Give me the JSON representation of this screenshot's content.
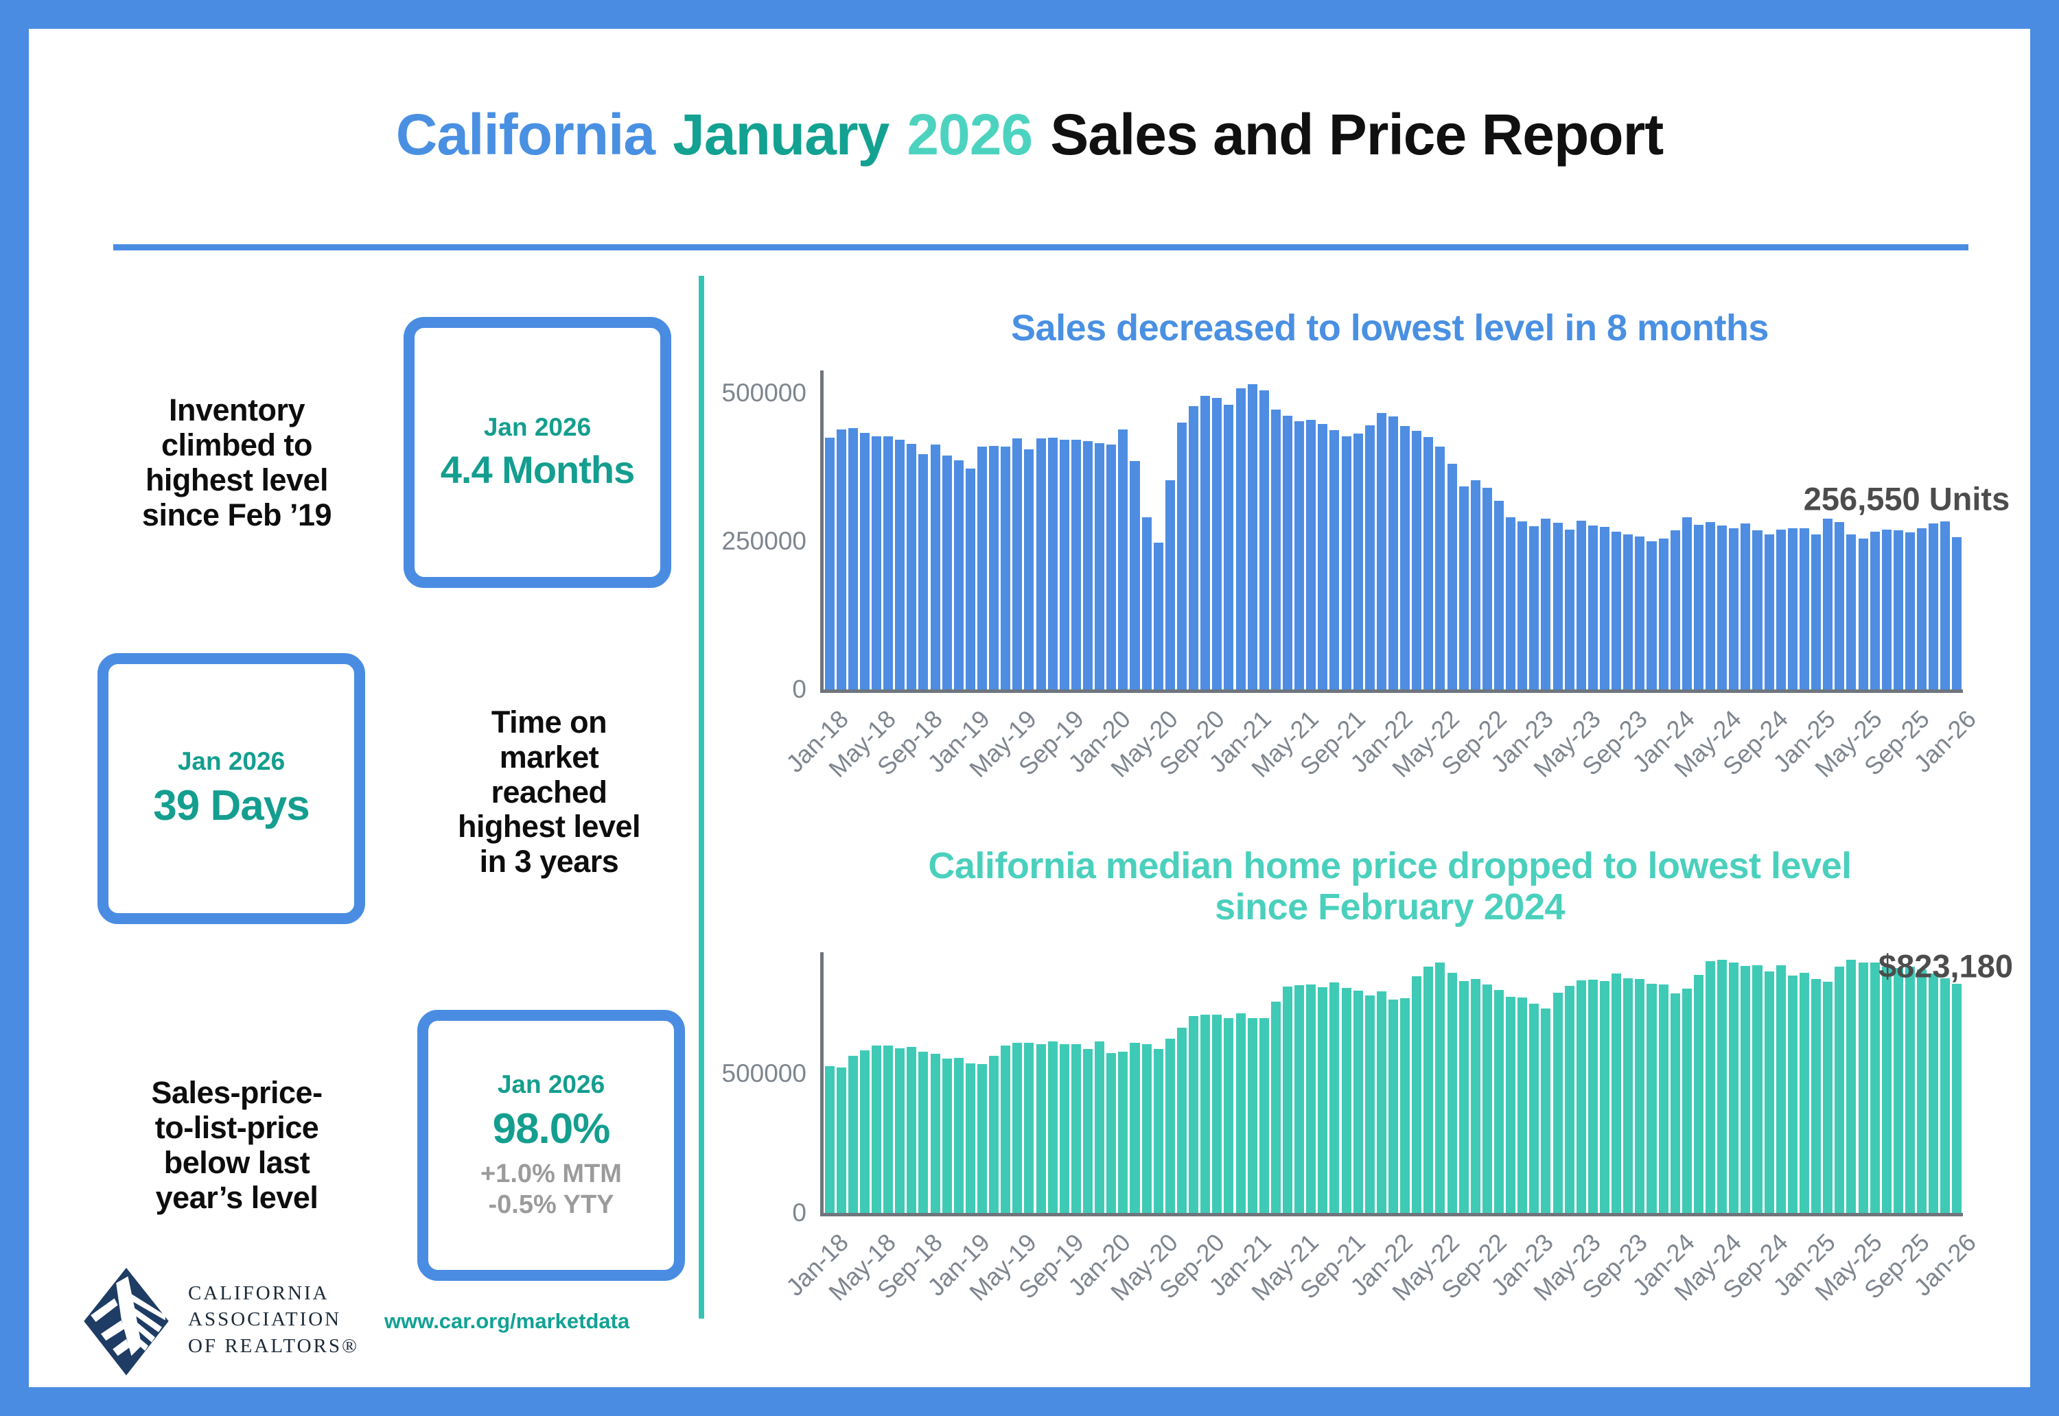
{
  "title": {
    "part1": "California",
    "part2": "January",
    "part3": "2026",
    "part4": "Sales and Price Report"
  },
  "stats": [
    {
      "label": "Inventory\nclimbed to\nhighest level\nsince Feb ’19",
      "period": "Jan 2026",
      "value": "4.4 Months"
    },
    {
      "label": "Time on\nmarket\nreached\nhighest level\nin 3 years",
      "period": "Jan 2026",
      "value": "39 Days"
    },
    {
      "label": "Sales-price-\nto-list-price\nbelow last\nyear’s level",
      "period": "Jan 2026",
      "value": "98.0%",
      "subs": "+1.0% MTM\n-0.5% YTY"
    }
  ],
  "footer": {
    "logo_text": "CALIFORNIA\nASSOCIATION\nOF REALTORS®",
    "url": "www.car.org/marketdata"
  },
  "colors": {
    "frame_blue": "#4a8ce2",
    "sales_bar_blue": "#4e8de2",
    "sales_title_blue": "#4a90e2",
    "price_bar_teal": "#3fcab6",
    "price_title_teal": "#4ad0bd",
    "stat_teal": "#149e8f",
    "divider_teal": "#35c3b4",
    "annotation_gray": "#4c4c4c",
    "axis_gray": "#6f757c",
    "logo_navy": "#1e3c64"
  },
  "chart_data": [
    {
      "type": "bar",
      "title": "Sales decreased to lowest level in 8 months",
      "annotation": "256,550 Units",
      "ylabel": "",
      "xlabel": "",
      "ylim": [
        0,
        538000
      ],
      "yticks": [
        0,
        250000,
        500000
      ],
      "tick_every": 4,
      "legend": "none",
      "grid": false,
      "categories": [
        "Jan-18",
        "Feb-18",
        "Mar-18",
        "Apr-18",
        "May-18",
        "Jun-18",
        "Jul-18",
        "Aug-18",
        "Sep-18",
        "Oct-18",
        "Nov-18",
        "Dec-18",
        "Jan-19",
        "Feb-19",
        "Mar-19",
        "Apr-19",
        "May-19",
        "Jun-19",
        "Jul-19",
        "Aug-19",
        "Sep-19",
        "Oct-19",
        "Nov-19",
        "Dec-19",
        "Jan-20",
        "Feb-20",
        "Mar-20",
        "Apr-20",
        "May-20",
        "Jun-20",
        "Jul-20",
        "Aug-20",
        "Sep-20",
        "Oct-20",
        "Nov-20",
        "Dec-20",
        "Jan-21",
        "Feb-21",
        "Mar-21",
        "Apr-21",
        "May-21",
        "Jun-21",
        "Jul-21",
        "Aug-21",
        "Sep-21",
        "Oct-21",
        "Nov-21",
        "Dec-21",
        "Jan-22",
        "Feb-22",
        "Mar-22",
        "Apr-22",
        "May-22",
        "Jun-22",
        "Jul-22",
        "Aug-22",
        "Sep-22",
        "Oct-22",
        "Nov-22",
        "Dec-22",
        "Jan-23",
        "Feb-23",
        "Mar-23",
        "Apr-23",
        "May-23",
        "Jun-23",
        "Jul-23",
        "Aug-23",
        "Sep-23",
        "Oct-23",
        "Nov-23",
        "Dec-23",
        "Jan-24",
        "Feb-24",
        "Mar-24",
        "Apr-24",
        "May-24",
        "Jun-24",
        "Jul-24",
        "Aug-24",
        "Sep-24",
        "Oct-24",
        "Nov-24",
        "Dec-24",
        "Jan-25",
        "Feb-25",
        "Mar-25",
        "Apr-25",
        "May-25",
        "Jun-25",
        "Jul-25",
        "Aug-25",
        "Sep-25",
        "Oct-25",
        "Nov-25",
        "Dec-25",
        "Jan-26"
      ],
      "values": [
        425000,
        438000,
        441000,
        433000,
        427000,
        427000,
        421000,
        414000,
        397000,
        413000,
        395000,
        387000,
        372000,
        410000,
        411000,
        410000,
        424000,
        405000,
        424000,
        425000,
        421000,
        421000,
        419000,
        415000,
        413000,
        438000,
        385000,
        290000,
        248000,
        353000,
        450000,
        478000,
        495000,
        492000,
        480000,
        508000,
        515000,
        505000,
        472000,
        462000,
        452000,
        455000,
        448000,
        437000,
        427000,
        431000,
        445000,
        466000,
        460000,
        444000,
        436000,
        426000,
        410000,
        381000,
        342000,
        353000,
        340000,
        318000,
        290000,
        284000,
        275000,
        288000,
        281000,
        270000,
        285000,
        277000,
        274000,
        266000,
        262000,
        258000,
        250000,
        254000,
        268000,
        290000,
        278000,
        282000,
        276000,
        272000,
        280000,
        268000,
        262000,
        270000,
        272000,
        272000,
        262000,
        288000,
        282000,
        262000,
        255000,
        266000,
        270000,
        268000,
        265000,
        272000,
        280000,
        284000,
        256550
      ]
    },
    {
      "type": "bar",
      "title": "California median home price dropped to lowest level\nsince February 2024",
      "annotation": "$823,180",
      "ylabel": "",
      "xlabel": "",
      "ylim": [
        0,
        936000
      ],
      "yticks": [
        0,
        500000
      ],
      "tick_every": 4,
      "legend": "none",
      "grid": false,
      "categories": [
        "Jan-18",
        "Feb-18",
        "Mar-18",
        "Apr-18",
        "May-18",
        "Jun-18",
        "Jul-18",
        "Aug-18",
        "Sep-18",
        "Oct-18",
        "Nov-18",
        "Dec-18",
        "Jan-19",
        "Feb-19",
        "Mar-19",
        "Apr-19",
        "May-19",
        "Jun-19",
        "Jul-19",
        "Aug-19",
        "Sep-19",
        "Oct-19",
        "Nov-19",
        "Dec-19",
        "Jan-20",
        "Feb-20",
        "Mar-20",
        "Apr-20",
        "May-20",
        "Jun-20",
        "Jul-20",
        "Aug-20",
        "Sep-20",
        "Oct-20",
        "Nov-20",
        "Dec-20",
        "Jan-21",
        "Feb-21",
        "Mar-21",
        "Apr-21",
        "May-21",
        "Jun-21",
        "Jul-21",
        "Aug-21",
        "Sep-21",
        "Oct-21",
        "Nov-21",
        "Dec-21",
        "Jan-22",
        "Feb-22",
        "Mar-22",
        "Apr-22",
        "May-22",
        "Jun-22",
        "Jul-22",
        "Aug-22",
        "Sep-22",
        "Oct-22",
        "Nov-22",
        "Dec-22",
        "Jan-23",
        "Feb-23",
        "Mar-23",
        "Apr-23",
        "May-23",
        "Jun-23",
        "Jul-23",
        "Aug-23",
        "Sep-23",
        "Oct-23",
        "Nov-23",
        "Dec-23",
        "Jan-24",
        "Feb-24",
        "Mar-24",
        "Apr-24",
        "May-24",
        "Jun-24",
        "Jul-24",
        "Aug-24",
        "Sep-24",
        "Oct-24",
        "Nov-24",
        "Dec-24",
        "Jan-25",
        "Feb-25",
        "Mar-25",
        "Apr-25",
        "May-25",
        "Jun-25",
        "Jul-25",
        "Aug-25",
        "Sep-25",
        "Oct-25",
        "Nov-25",
        "Dec-25",
        "Jan-26"
      ],
      "values": [
        527000,
        522000,
        564000,
        584000,
        600000,
        602000,
        591000,
        596000,
        578000,
        572000,
        554000,
        557000,
        538000,
        534000,
        565000,
        602000,
        611000,
        611000,
        607000,
        617000,
        605000,
        605000,
        589000,
        615000,
        575000,
        578000,
        612000,
        606000,
        588000,
        626000,
        666000,
        706000,
        712000,
        711000,
        699000,
        717000,
        699000,
        699000,
        758000,
        814000,
        818000,
        819000,
        811000,
        827000,
        808000,
        798000,
        782000,
        796000,
        765000,
        771000,
        849000,
        884000,
        898000,
        863000,
        833000,
        839000,
        821000,
        801000,
        777000,
        774000,
        751000,
        735000,
        791000,
        815000,
        836000,
        838000,
        832000,
        859000,
        843000,
        840000,
        822000,
        819000,
        789000,
        806000,
        854000,
        904000,
        908000,
        900000,
        886000,
        888000,
        868000,
        888000,
        852000,
        861000,
        839000,
        829000,
        884000,
        910000,
        900000,
        899000,
        884000,
        879000,
        885000,
        875000,
        860000,
        842000,
        823180
      ]
    }
  ]
}
